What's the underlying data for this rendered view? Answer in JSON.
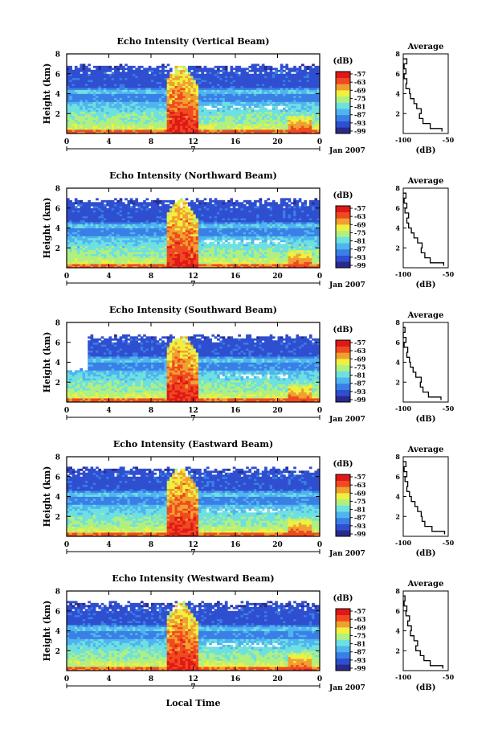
{
  "figure": {
    "bottom_xlabel": "Local Time",
    "date_label": "Jan 2007",
    "date_day": "7"
  },
  "colorbar": {
    "unit": "(dB)",
    "ticks": [
      "-57",
      "-63",
      "-69",
      "-75",
      "-81",
      "-87",
      "-93",
      "-99"
    ],
    "colors": [
      "#2a2a8a",
      "#2f4fd0",
      "#3a7fe6",
      "#4fb4f0",
      "#6fe0e0",
      "#b0f080",
      "#f0f040",
      "#f0a030",
      "#f04a20",
      "#e01818"
    ]
  },
  "chart_data": [
    {
      "type": "heatmap",
      "title": "Echo Intensity (Vertical Beam)",
      "beam": "vertical",
      "xlabel": "",
      "ylabel": "Height (km)",
      "xlim": [
        0,
        24
      ],
      "ylim": [
        0,
        8
      ],
      "xticks": [
        "0",
        "4",
        "8",
        "12",
        "16",
        "20",
        "0"
      ],
      "yticks": [
        "2",
        "4",
        "6",
        "8"
      ],
      "color_unit": "dB",
      "color_range": [
        -99,
        -57
      ],
      "profile": {
        "title": "Average",
        "xlabel": "(dB)",
        "xlim": [
          -100,
          -50
        ],
        "ylim": [
          0,
          8
        ],
        "xticks": [
          "-100",
          "-50"
        ],
        "yticks": [
          "2",
          "4",
          "6",
          "8"
        ],
        "heights": [
          0.2,
          0.5,
          1.0,
          1.5,
          2.0,
          2.5,
          3.0,
          3.5,
          4.0,
          4.5,
          5.0,
          5.5,
          6.0,
          6.5,
          7.0,
          7.5
        ],
        "values": [
          -57,
          -70,
          -78,
          -82,
          -80,
          -85,
          -88,
          -92,
          -93,
          -97,
          -96,
          -99,
          -97,
          -99,
          -96,
          -100
        ]
      }
    },
    {
      "type": "heatmap",
      "title": "Echo Intensity (Northward Beam)",
      "beam": "northward",
      "xlabel": "",
      "ylabel": "Height (km)",
      "xlim": [
        0,
        24
      ],
      "ylim": [
        0,
        8
      ],
      "xticks": [
        "0",
        "4",
        "8",
        "12",
        "16",
        "20",
        "0"
      ],
      "yticks": [
        "2",
        "4",
        "6",
        "8"
      ],
      "color_unit": "dB",
      "color_range": [
        -99,
        -57
      ],
      "profile": {
        "title": "Average",
        "xlabel": "(dB)",
        "xlim": [
          -100,
          -50
        ],
        "ylim": [
          0,
          8
        ],
        "xticks": [
          "-100",
          "-50"
        ],
        "yticks": [
          "2",
          "4",
          "6",
          "8"
        ],
        "heights": [
          0.2,
          0.5,
          1.0,
          1.5,
          2.0,
          2.5,
          3.0,
          3.5,
          4.0,
          4.5,
          5.0,
          5.5,
          6.0,
          6.5,
          7.0,
          7.5
        ],
        "values": [
          -55,
          -70,
          -76,
          -80,
          -79,
          -84,
          -88,
          -91,
          -94,
          -96,
          -94,
          -98,
          -96,
          -99,
          -97,
          -100
        ]
      }
    },
    {
      "type": "heatmap",
      "title": "Echo Intensity (Southward Beam)",
      "beam": "southward",
      "xlabel": "",
      "ylabel": "Height (km)",
      "xlim": [
        0,
        24
      ],
      "ylim": [
        0,
        8
      ],
      "xticks": [
        "0",
        "4",
        "8",
        "12",
        "16",
        "20",
        "0"
      ],
      "yticks": [
        "2",
        "4",
        "6",
        "8"
      ],
      "color_unit": "dB",
      "color_range": [
        -99,
        -57
      ],
      "profile": {
        "title": "Average",
        "xlabel": "(dB)",
        "xlim": [
          -100,
          -50
        ],
        "ylim": [
          0,
          8
        ],
        "xticks": [
          "-100",
          "-50"
        ],
        "yticks": [
          "2",
          "4",
          "6",
          "8"
        ],
        "heights": [
          0.2,
          0.5,
          1.0,
          1.5,
          2.0,
          2.5,
          3.0,
          3.5,
          4.0,
          4.5,
          5.0,
          5.5,
          6.0,
          6.5,
          7.0,
          7.5
        ],
        "values": [
          -58,
          -72,
          -78,
          -81,
          -80,
          -86,
          -89,
          -92,
          -93,
          -96,
          -95,
          -99,
          -97,
          -100,
          -98,
          -100
        ]
      }
    },
    {
      "type": "heatmap",
      "title": "Echo Intensity (Eastward Beam)",
      "beam": "eastward",
      "xlabel": "",
      "ylabel": "Height (km)",
      "xlim": [
        0,
        24
      ],
      "ylim": [
        0,
        8
      ],
      "xticks": [
        "0",
        "4",
        "8",
        "12",
        "16",
        "20",
        "0"
      ],
      "yticks": [
        "2",
        "4",
        "6",
        "8"
      ],
      "color_unit": "dB",
      "color_range": [
        -99,
        -57
      ],
      "profile": {
        "title": "Average",
        "xlabel": "(dB)",
        "xlim": [
          -100,
          -50
        ],
        "ylim": [
          0,
          8
        ],
        "xticks": [
          "-100",
          "-50"
        ],
        "yticks": [
          "2",
          "4",
          "6",
          "8"
        ],
        "heights": [
          0.2,
          0.5,
          1.0,
          1.5,
          2.0,
          2.5,
          3.0,
          3.5,
          4.0,
          4.5,
          5.0,
          5.5,
          6.0,
          6.5,
          7.0,
          7.5
        ],
        "values": [
          -54,
          -68,
          -76,
          -79,
          -80,
          -84,
          -87,
          -91,
          -93,
          -96,
          -95,
          -98,
          -96,
          -99,
          -97,
          -100
        ]
      }
    },
    {
      "type": "heatmap",
      "title": "Echo Intensity (Westward Beam)",
      "beam": "westward",
      "xlabel": "Local Time",
      "ylabel": "Height (km)",
      "xlim": [
        0,
        24
      ],
      "ylim": [
        0,
        8
      ],
      "xticks": [
        "0",
        "4",
        "8",
        "12",
        "16",
        "20",
        "0"
      ],
      "yticks": [
        "2",
        "4",
        "6",
        "8"
      ],
      "color_unit": "dB",
      "color_range": [
        -99,
        -57
      ],
      "profile": {
        "title": "Average",
        "xlabel": "(dB)",
        "xlim": [
          -100,
          -50
        ],
        "ylim": [
          0,
          8
        ],
        "xticks": [
          "-100",
          "-50"
        ],
        "yticks": [
          "2",
          "4",
          "6",
          "8"
        ],
        "heights": [
          0.2,
          0.5,
          1.0,
          1.5,
          2.0,
          2.5,
          3.0,
          3.5,
          4.0,
          4.5,
          5.0,
          5.5,
          6.0,
          6.5,
          7.0,
          7.5
        ],
        "values": [
          -56,
          -70,
          -77,
          -81,
          -86,
          -84,
          -88,
          -92,
          -91,
          -95,
          -93,
          -97,
          -96,
          -99,
          -98,
          -100
        ]
      }
    }
  ]
}
